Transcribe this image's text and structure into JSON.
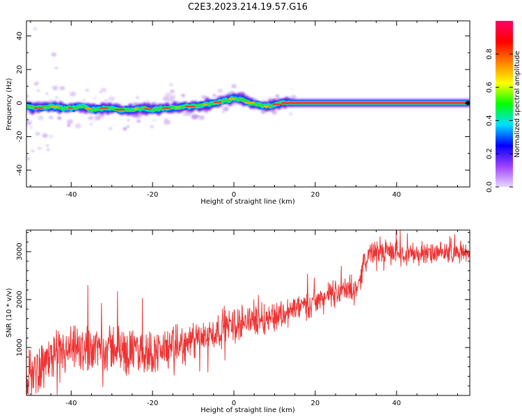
{
  "title": "C2E3.2023.214.19.57.G16",
  "colors": {
    "snr_line": "#ee3333",
    "frame": "#000000",
    "halo": "#c9a8f0",
    "halo_core": "#b070ee",
    "trace_edge": "#5a10e0",
    "trace_mid": "#00d8d8",
    "trace_core": "#ff3030",
    "trace_hot": "#ffb000"
  },
  "chart_data": [
    {
      "type": "heatmap",
      "name": "spectrogram",
      "xlabel": "Height of straight line (km)",
      "ylabel": "Frequency (Hz)",
      "xlim": [
        -51,
        58
      ],
      "ylim": [
        -50,
        49
      ],
      "xticks": [
        -40,
        -20,
        0,
        20,
        40
      ],
      "xtick_labels": [
        "-40",
        "-20",
        "0",
        "20",
        "40"
      ],
      "yticks": [
        -40,
        -20,
        0,
        20,
        40
      ],
      "ytick_labels": [
        "-40",
        "-20",
        "0",
        "20",
        "40"
      ],
      "ridge": {
        "x": [
          -51,
          -48,
          -45,
          -42,
          -40,
          -37,
          -35,
          -32,
          -30,
          -28,
          -25,
          -22,
          -20,
          -17,
          -15,
          -12,
          -10,
          -7,
          -5,
          -3,
          -1,
          0,
          2,
          4,
          6,
          8,
          10,
          12,
          15,
          20,
          30,
          40,
          50,
          57.5
        ],
        "y": [
          -2,
          -3,
          -2,
          -3,
          -3,
          -2,
          -4,
          -3,
          -3,
          -4,
          -4,
          -3,
          -4,
          -3,
          -3,
          -2,
          -2,
          -1,
          0,
          1,
          2,
          3,
          2,
          0,
          -1,
          -2,
          -1,
          0,
          0,
          0,
          0,
          0,
          0,
          0
        ]
      },
      "colorbar": {
        "label": "Normalized spectral amplitude",
        "range": [
          0,
          1
        ],
        "ticks": [
          0.0,
          0.2,
          0.4,
          0.6,
          0.8
        ],
        "tick_labels": [
          "0.0",
          "0.2",
          "0.4",
          "0.6",
          "0.8"
        ],
        "stops": [
          "#e8d8ff",
          "#a040ff",
          "#0000ff",
          "#00e0ff",
          "#00ff00",
          "#ffff00",
          "#ff8000",
          "#ff0000",
          "#ff0066"
        ]
      }
    },
    {
      "type": "line",
      "name": "snr",
      "xlabel": "Height of straight line (km)",
      "ylabel": "SNR (10 * v/v)",
      "xlim": [
        -51,
        58
      ],
      "ylim": [
        0,
        3450
      ],
      "xticks": [
        -40,
        -20,
        0,
        20,
        40
      ],
      "xtick_labels": [
        "-40",
        "-20",
        "0",
        "20",
        "40"
      ],
      "yticks": [
        1000,
        2000,
        3000
      ],
      "ytick_labels": [
        "1000",
        "2000",
        "3000"
      ],
      "trend": {
        "x": [
          -51,
          -45,
          -40,
          -35,
          -30,
          -25,
          -20,
          -15,
          -10,
          -5,
          0,
          5,
          10,
          15,
          20,
          25,
          30,
          31,
          32,
          33,
          35,
          40,
          45,
          50,
          55,
          58
        ],
        "y": [
          400,
          800,
          900,
          1000,
          1000,
          900,
          900,
          1000,
          1100,
          1300,
          1500,
          1600,
          1650,
          1800,
          1950,
          2150,
          2250,
          2400,
          2800,
          2950,
          3000,
          3000,
          2950,
          2950,
          3000,
          3000
        ]
      },
      "spread": {
        "x": [
          -51,
          -30,
          -10,
          10,
          30,
          58
        ],
        "y": [
          500,
          520,
          400,
          330,
          260,
          210
        ]
      }
    }
  ]
}
